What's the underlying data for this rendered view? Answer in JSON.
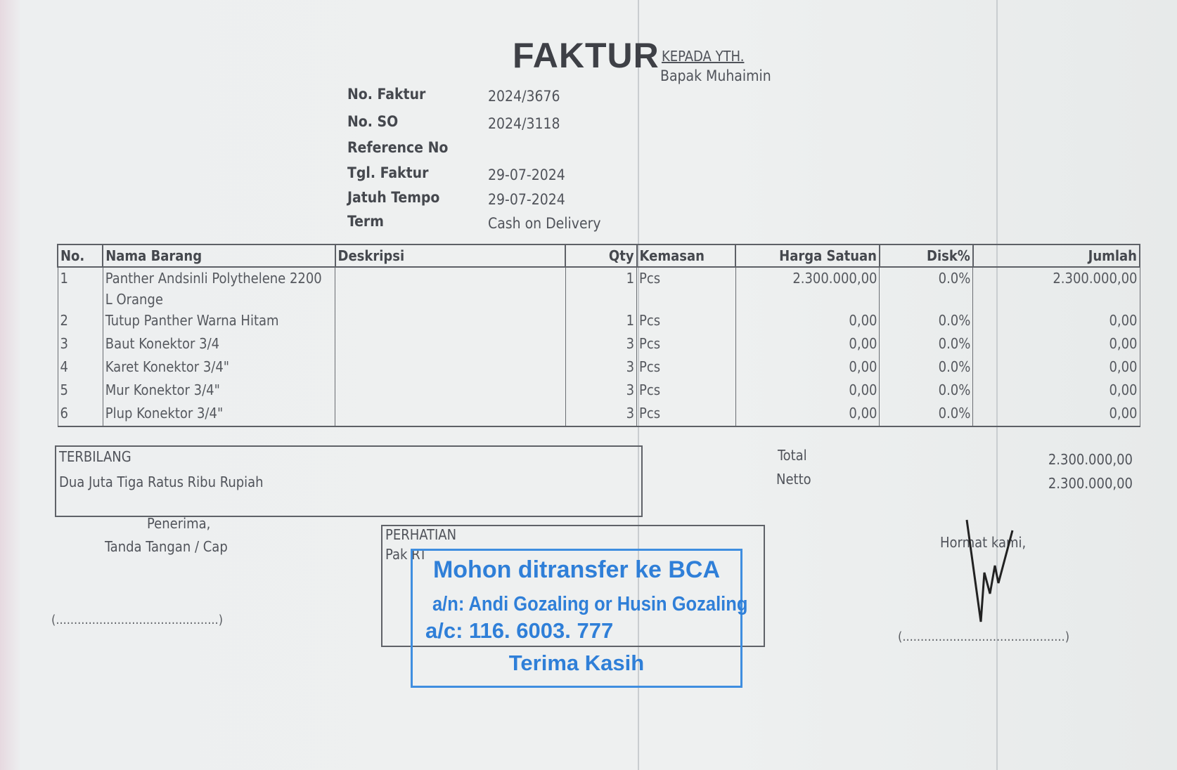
{
  "header": {
    "title": "FAKTUR",
    "to_label": "KEPADA YTH.",
    "to_name": "Bapak Muhaimin"
  },
  "info": [
    {
      "label": "No. Faktur",
      "value": "2024/3676"
    },
    {
      "label": "No. SO",
      "value": "2024/3118"
    },
    {
      "label": "Reference No",
      "value": ""
    },
    {
      "label": "Tgl. Faktur",
      "value": "29-07-2024"
    },
    {
      "label": "Jatuh Tempo",
      "value": "29-07-2024"
    },
    {
      "label": "Term",
      "value": "Cash on Delivery"
    }
  ],
  "table": {
    "columns": [
      "No.",
      "Nama Barang",
      "Deskripsi",
      "Qty",
      "Kemasan",
      "Harga Satuan",
      "Disk%",
      "Jumlah"
    ],
    "rows": [
      {
        "no": "1",
        "name": "Panther Andsinli Polythelene 2200 L Orange",
        "desc": "",
        "qty": "1",
        "unit": "Pcs",
        "price": "2.300.000,00",
        "disc": "0.0%",
        "total": "2.300.000,00"
      },
      {
        "no": "2",
        "name": "Tutup Panther Warna Hitam",
        "desc": "",
        "qty": "1",
        "unit": "Pcs",
        "price": "0,00",
        "disc": "0.0%",
        "total": "0,00"
      },
      {
        "no": "3",
        "name": "Baut Konektor 3/4",
        "desc": "",
        "qty": "3",
        "unit": "Pcs",
        "price": "0,00",
        "disc": "0.0%",
        "total": "0,00"
      },
      {
        "no": "4",
        "name": "Karet Konektor 3/4\"",
        "desc": "",
        "qty": "3",
        "unit": "Pcs",
        "price": "0,00",
        "disc": "0.0%",
        "total": "0,00"
      },
      {
        "no": "5",
        "name": "Mur Konektor 3/4\"",
        "desc": "",
        "qty": "3",
        "unit": "Pcs",
        "price": "0,00",
        "disc": "0.0%",
        "total": "0,00"
      },
      {
        "no": "6",
        "name": "Plup Konektor 3/4\"",
        "desc": "",
        "qty": "3",
        "unit": "Pcs",
        "price": "0,00",
        "disc": "0.0%",
        "total": "0,00"
      }
    ]
  },
  "terbilang": {
    "label": "TERBILANG",
    "value": "Dua Juta Tiga Ratus Ribu Rupiah"
  },
  "summary": {
    "total_label": "Total",
    "total_value": "2.300.000,00",
    "netto_label": "Netto",
    "netto_value": "2.300.000,00"
  },
  "receiver": {
    "line1": "Penerima,",
    "line2": "Tanda Tangan / Cap",
    "sign_line": "(.............................................)"
  },
  "attention": {
    "label": "PERHATIAN",
    "value": "Pak RT"
  },
  "stamp": {
    "line1": "Mohon ditransfer ke BCA",
    "line2": "a/n: Andi Gozaling or Husin Gozaling",
    "line3": "a/c: 116. 6003. 777",
    "line4": "Terima Kasih",
    "color": "#2f7fd8"
  },
  "sender": {
    "label": "Hormat kami,",
    "sign_line": "(.............................................)"
  }
}
